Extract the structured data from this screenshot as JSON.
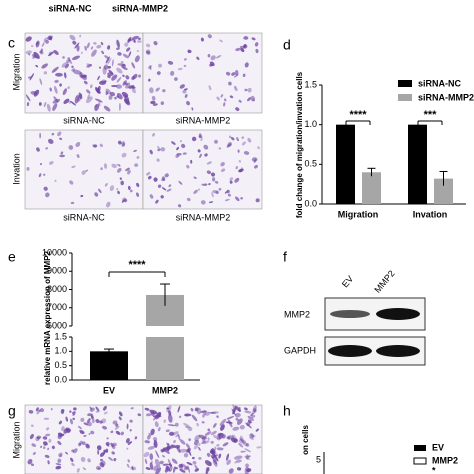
{
  "top": {
    "labels": [
      "siRNA-NC",
      "siRNA-MMP2"
    ]
  },
  "panel_c": {
    "letter": "c",
    "rows": [
      "Migration",
      "Invation"
    ],
    "columns": [
      "siRNA-NC",
      "siRNA-MMP2"
    ]
  },
  "chart_data": [
    {
      "type": "bar",
      "letter": "d",
      "ylabel": "fold change of migration/invation cells",
      "categories": [
        "Migration",
        "Invation"
      ],
      "series": [
        {
          "name": "siRNA-NC",
          "color": "#000000",
          "values": [
            1.0,
            1.0
          ]
        },
        {
          "name": "siRNA-MMP2",
          "color": "#a6a6a6",
          "values": [
            0.4,
            0.32
          ],
          "errors": [
            0.05,
            0.09
          ]
        }
      ],
      "ylim": [
        0,
        1.5
      ],
      "yticks": [
        {
          "value": 0,
          "label": "0.0"
        },
        0.5,
        {
          "value": 1,
          "label": "1.0"
        },
        1.5
      ],
      "annotations": [
        "****",
        "***"
      ],
      "legend": "top-right"
    },
    {
      "type": "broken-bar",
      "letter": "e",
      "ylabel": "relative mRNA expression of MMP2",
      "categories": [
        "EV",
        "MMP2"
      ],
      "values": [
        1.0,
        7700
      ],
      "errors": [
        0.08,
        600
      ],
      "colors": [
        "#000000",
        "#a6a6a6"
      ],
      "ylim": [
        0,
        10000
      ],
      "ybreak": [
        1.5,
        6000
      ],
      "yticks": [
        {
          "value": 0,
          "label": "0.0"
        },
        0.5,
        {
          "value": 1,
          "label": "1.0"
        },
        1.5,
        6000,
        7000,
        8000,
        9000,
        10000
      ],
      "annotations": [
        "****"
      ]
    }
  ],
  "panel_f": {
    "letter": "f",
    "lanes": [
      "EV",
      "MMP2"
    ],
    "bands": [
      "MMP2",
      "GAPDH"
    ]
  },
  "panel_g": {
    "letter": "g",
    "rows": [
      "Migration"
    ]
  },
  "panel_h": {
    "letter": "h",
    "ylabel": "on cells",
    "ytick": "5",
    "legend": [
      "EV",
      "MMP2"
    ],
    "annotation": "*"
  }
}
